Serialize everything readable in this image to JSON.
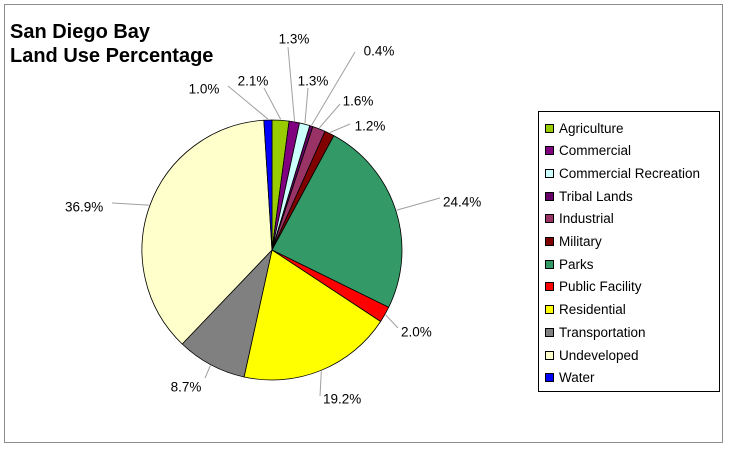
{
  "chart_data": {
    "type": "pie",
    "title_lines": [
      "San Diego Bay",
      "Land Use Percentage"
    ],
    "slices": [
      {
        "name": "Agriculture",
        "value": 2.1,
        "label": "2.1%",
        "color": "#99cc00"
      },
      {
        "name": "Commercial",
        "value": 1.3,
        "label": "1.3%",
        "color": "#800080"
      },
      {
        "name": "Commercial Recreation",
        "value": 1.3,
        "label": "1.3%",
        "color": "#ccffff"
      },
      {
        "name": "Tribal Lands",
        "value": 0.4,
        "label": "0.4%",
        "color": "#660066"
      },
      {
        "name": "Industrial",
        "value": 1.6,
        "label": "1.6%",
        "color": "#993366"
      },
      {
        "name": "Military",
        "value": 1.2,
        "label": "1.2%",
        "color": "#800000"
      },
      {
        "name": "Parks",
        "value": 24.4,
        "label": "24.4%",
        "color": "#339966"
      },
      {
        "name": "Public Facility",
        "value": 2.0,
        "label": "2.0%",
        "color": "#ff0000"
      },
      {
        "name": "Residential",
        "value": 19.2,
        "label": "19.2%",
        "color": "#ffff00"
      },
      {
        "name": "Transportation",
        "value": 8.7,
        "label": "8.7%",
        "color": "#808080"
      },
      {
        "name": "Undeveloped",
        "value": 36.9,
        "label": "36.9%",
        "color": "#ffffcc"
      },
      {
        "name": "Water",
        "value": 1.0,
        "label": "1.0%",
        "color": "#0000ff"
      }
    ],
    "legend_position": "right"
  }
}
